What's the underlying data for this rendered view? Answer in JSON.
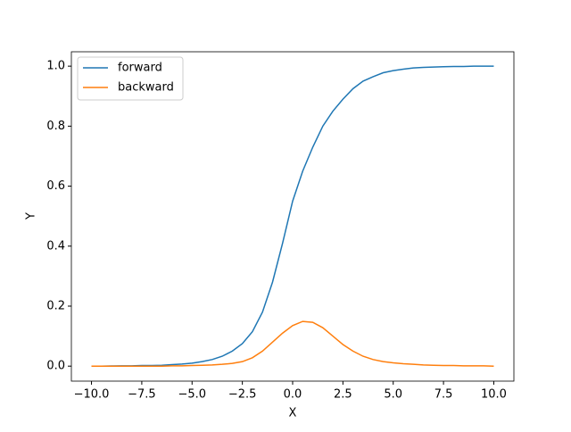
{
  "chart_data": {
    "type": "line",
    "xlabel": "X",
    "ylabel": "Y",
    "x": [
      -10,
      -9.5,
      -9,
      -8.5,
      -8,
      -7.5,
      -7,
      -6.5,
      -6,
      -5.5,
      -5,
      -4.5,
      -4,
      -3.5,
      -3,
      -2.5,
      -2,
      -1.5,
      -1,
      -0.5,
      0,
      0.5,
      1,
      1.5,
      2,
      2.5,
      3,
      3.5,
      4,
      4.5,
      5,
      5.5,
      6,
      6.5,
      7,
      7.5,
      8,
      8.5,
      9,
      9.5,
      10
    ],
    "series": [
      {
        "name": "forward",
        "color": "#1f77b4",
        "values": [
          0,
          0,
          0.0005,
          0.001,
          0.001,
          0.002,
          0.002,
          0.003,
          0.005,
          0.007,
          0.01,
          0.015,
          0.022,
          0.033,
          0.05,
          0.075,
          0.115,
          0.18,
          0.28,
          0.41,
          0.55,
          0.65,
          0.73,
          0.8,
          0.85,
          0.89,
          0.925,
          0.95,
          0.965,
          0.978,
          0.985,
          0.99,
          0.994,
          0.996,
          0.997,
          0.998,
          0.999,
          0.999,
          1,
          1,
          1
        ]
      },
      {
        "name": "backward",
        "color": "#ff7f0e",
        "values": [
          0,
          0,
          0,
          0,
          0,
          0,
          0,
          0,
          0.001,
          0.001,
          0.002,
          0.003,
          0.004,
          0.006,
          0.009,
          0.015,
          0.028,
          0.05,
          0.08,
          0.11,
          0.135,
          0.149,
          0.146,
          0.128,
          0.1,
          0.072,
          0.05,
          0.033,
          0.022,
          0.015,
          0.011,
          0.008,
          0.006,
          0.004,
          0.003,
          0.002,
          0.002,
          0.001,
          0.001,
          0.001,
          0
        ]
      }
    ],
    "xlim": [
      -11,
      11
    ],
    "ylim": [
      -0.05,
      1.048
    ],
    "xticks": [
      {
        "value": -10,
        "label": "−10.0"
      },
      {
        "value": -7.5,
        "label": "−7.5"
      },
      {
        "value": -5,
        "label": "−5.0"
      },
      {
        "value": -2.5,
        "label": "−2.5"
      },
      {
        "value": 0,
        "label": "0.0"
      },
      {
        "value": 2.5,
        "label": "2.5"
      },
      {
        "value": 5,
        "label": "5.0"
      },
      {
        "value": 7.5,
        "label": "7.5"
      },
      {
        "value": 10,
        "label": "10.0"
      }
    ],
    "yticks": [
      {
        "value": 0,
        "label": "0.0"
      },
      {
        "value": 0.2,
        "label": "0.2"
      },
      {
        "value": 0.4,
        "label": "0.4"
      },
      {
        "value": 0.6,
        "label": "0.6"
      },
      {
        "value": 0.8,
        "label": "0.8"
      },
      {
        "value": 1,
        "label": "1.0"
      }
    ],
    "legend": "upper left"
  }
}
